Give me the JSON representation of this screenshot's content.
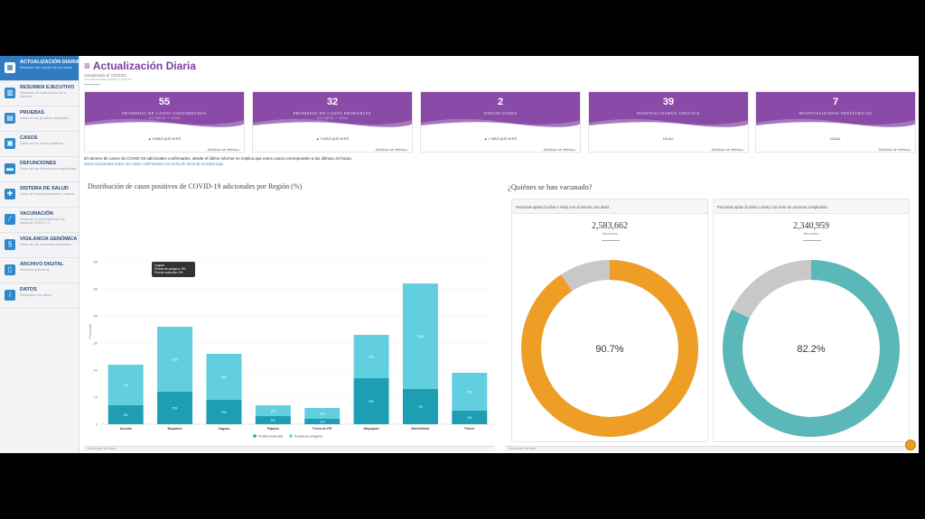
{
  "sidebar": {
    "items": [
      {
        "label": "ACTUALIZACIÓN DIARIA",
        "sub": "Resumen del reporte de los casos",
        "icon": "calendar-icon"
      },
      {
        "label": "RESUMEN EJECUTIVO",
        "sub": "Resumen de indicadores de la semana",
        "icon": "bar-chart-icon"
      },
      {
        "label": "PRUEBAS",
        "sub": "Datos de las pruebas realizadas",
        "icon": "clipboard-icon"
      },
      {
        "label": "CASOS",
        "sub": "Datos de los casos positivos",
        "icon": "folder-icon"
      },
      {
        "label": "DEFUNCIONES",
        "sub": "Datos de las defunciones reportadas",
        "icon": "bed-icon"
      },
      {
        "label": "SISTEMA DE SALUD",
        "sub": "Datos de hospitalizaciones y camas",
        "icon": "hospital-icon"
      },
      {
        "label": "VACUNACIÓN",
        "sub": "Datos de la administración de vacunas COVID-19",
        "icon": "syringe-icon"
      },
      {
        "label": "VIGILANCIA GENÓMICA",
        "sub": "Datos de las variantes detectadas",
        "icon": "dna-icon"
      },
      {
        "label": "ARCHIVO DIGITAL",
        "sub": "Informes anteriores",
        "icon": "archive-icon"
      },
      {
        "label": "DATOS",
        "sub": "Descargue los datos",
        "icon": "info-icon"
      }
    ]
  },
  "header": {
    "title": "≡ Actualización Diaria",
    "updated": "Actualizado el 7/3/2023",
    "note": "Los datos están sujetos a revisión"
  },
  "cards": [
    {
      "value": "55",
      "label": "PROMEDIO DE CASOS CONFIRMADOS",
      "sub": "ÚLTIMOS 7 DÍAS",
      "foot": "▲ 5 MÁS QUE AYER",
      "link": "Definición de métrica ▸"
    },
    {
      "value": "32",
      "label": "PROMEDIO DE CASOS PROBABLES",
      "sub": "ÚLTIMOS 7 DÍAS",
      "foot": "▲ 3 MÁS QUE AYER",
      "link": "Definición de métrica ▸"
    },
    {
      "value": "2",
      "label": "DEFUNCIONES",
      "sub": "",
      "foot": "▲ 1 MÁS QUE AYER",
      "link": "Definición de métrica ▸"
    },
    {
      "value": "39",
      "label": "HOSPITALIZADOS ADULTOS",
      "sub": "",
      "foot": "IGUAL",
      "link": "Definición de métrica ▸"
    },
    {
      "value": "7",
      "label": "HOSPITALIZADOS PEDIÁTRICOS",
      "sub": "",
      "foot": "IGUAL",
      "link": "Definición de métrica ▸"
    }
  ],
  "disclaimer": {
    "line1": "El número de casos de COVID-19 adicionales confirmados, desde el último informe no implica que estos casos corresponden a las últimas 24 horas.",
    "line2": "Datos adicionales sobre los casos confirmados a la fecha de toma de muestra aquí"
  },
  "chart_data": {
    "type": "bar",
    "stacked": true,
    "title": "Distribución de casos positivos de COVID-19 adicionales por Región (%)",
    "ylabel": "Porcentaje",
    "ylim": [
      0,
      60
    ],
    "yticks": [
      0,
      10,
      20,
      30,
      40,
      50,
      60
    ],
    "categories": [
      "Arecibo",
      "Bayamón",
      "Caguas",
      "Fajardo",
      "Fuera de PR",
      "Mayagüez",
      "Metro/Norte",
      "Ponce"
    ],
    "series": [
      {
        "name": "Prueba molecular",
        "color": "#1e9eb2",
        "values": [
          7,
          12,
          9,
          3,
          2,
          17,
          13,
          5
        ]
      },
      {
        "name": "Prueba de antígeno",
        "color": "#62cfe0",
        "values": [
          15,
          24,
          17,
          4,
          4,
          16,
          39,
          14
        ]
      }
    ],
    "bar_labels": {
      "Prueba molecular": [
        "4%",
        "5%",
        "4%",
        "2%",
        "1%",
        "6%",
        "7%",
        "3%"
      ],
      "Prueba de antígeno": [
        "7%",
        "10%",
        "8%",
        "2%",
        "2%",
        "6%",
        "18%",
        "6%"
      ]
    },
    "tooltip": {
      "title": "Caguas",
      "lines": [
        "Prueba de antígeno: 8%",
        "Prueba molecular: 4%"
      ]
    }
  },
  "vaccination": {
    "title": "¿Quiénes se han vacunado?",
    "boxes": [
      {
        "header": "Personas aptas (5 años o más) con al menos una dosis",
        "count": "2,583,662",
        "count_label": "Vacunados",
        "percent": "90.7%",
        "value": 90.7,
        "color": "#ee9e25"
      },
      {
        "header": "Personas aptas (5 años o más) con serie de vacunas completada",
        "count": "2,340,959",
        "count_label": "Vacunados",
        "percent": "82.2%",
        "value": 82.2,
        "color": "#5bb8b8"
      }
    ]
  },
  "footer": {
    "left": "Notas sobre los datos",
    "right": "Notas sobre los datos"
  }
}
